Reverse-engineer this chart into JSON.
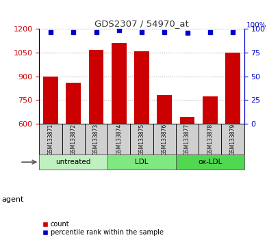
{
  "title": "GDS2307 / 54970_at",
  "samples": [
    "GSM133871",
    "GSM133872",
    "GSM133873",
    "GSM133874",
    "GSM133875",
    "GSM133876",
    "GSM133877",
    "GSM133878",
    "GSM133879"
  ],
  "counts": [
    900,
    862,
    1070,
    1110,
    1058,
    780,
    645,
    775,
    1050
  ],
  "percentile_ranks": [
    97,
    97,
    97,
    99,
    97,
    97,
    96,
    97,
    97
  ],
  "ylim_left": [
    600,
    1200
  ],
  "ylim_right": [
    0,
    100
  ],
  "yticks_left": [
    600,
    750,
    900,
    1050,
    1200
  ],
  "yticks_right": [
    0,
    25,
    50,
    75,
    100
  ],
  "groups": [
    {
      "label": "untreated",
      "start": 0,
      "end": 3,
      "color": "#c0f0c0"
    },
    {
      "label": "LDL",
      "start": 3,
      "end": 6,
      "color": "#80e880"
    },
    {
      "label": "ox-LDL",
      "start": 6,
      "end": 9,
      "color": "#50d850"
    }
  ],
  "bar_color": "#cc0000",
  "dot_color": "#0000cc",
  "sample_box_color": "#d0d0d0",
  "sample_text_color": "#111111",
  "grid_color": "#aaaaaa",
  "title_color": "#333333",
  "left_axis_color": "#cc0000",
  "right_axis_color": "#0000cc",
  "legend_bar_label": "count",
  "legend_dot_label": "percentile rank within the sample",
  "agent_label": "agent",
  "figsize": [
    4.1,
    3.54
  ],
  "dpi": 100
}
